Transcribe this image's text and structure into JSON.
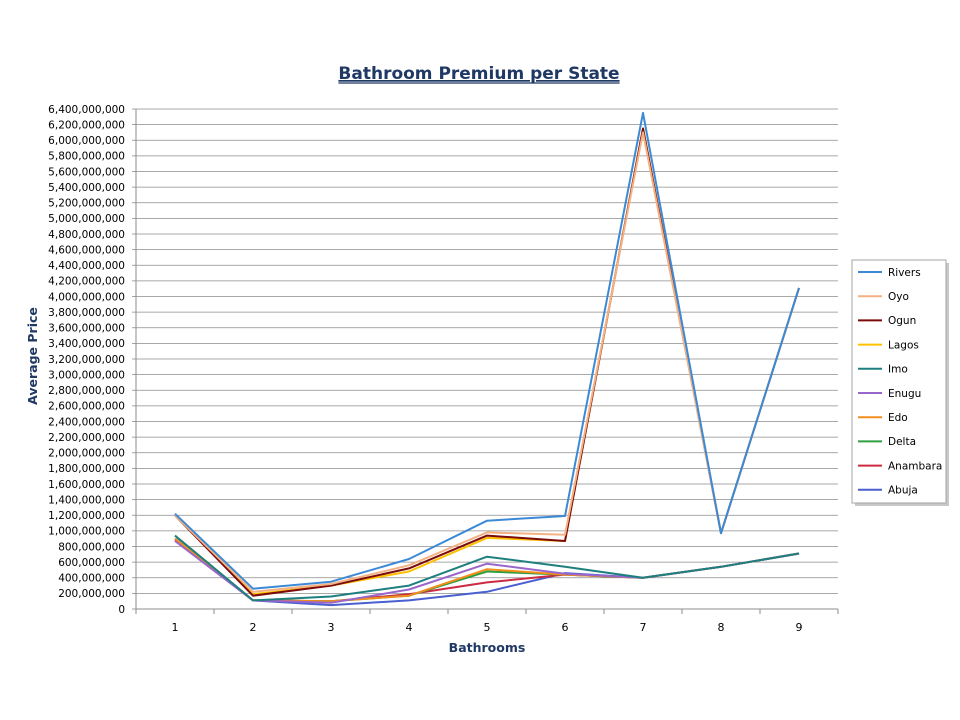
{
  "chart_data": {
    "type": "line",
    "title": "Bathroom Premium per State",
    "xlabel": "Bathrooms",
    "ylabel": "Average Price",
    "x": [
      1,
      2,
      3,
      4,
      5,
      6,
      7,
      8,
      9
    ],
    "ylim": [
      0,
      6400000000
    ],
    "ytick_step": 200000000,
    "grid": true,
    "legend_position": "right",
    "series": [
      {
        "name": "Rivers",
        "color": "#3c8ad6",
        "values": [
          1220000000,
          260000000,
          350000000,
          640000000,
          1130000000,
          1190000000,
          6350000000,
          970000000,
          4110000000
        ]
      },
      {
        "name": "Oyo",
        "color": "#f4b183",
        "values": [
          1200000000,
          220000000,
          320000000,
          560000000,
          980000000,
          950000000,
          6100000000,
          970000000,
          4110000000
        ]
      },
      {
        "name": "Ogun",
        "color": "#7b0a0a",
        "values": [
          1200000000,
          170000000,
          300000000,
          520000000,
          940000000,
          870000000,
          6150000000,
          970000000,
          4110000000
        ]
      },
      {
        "name": "Lagos",
        "color": "#ffc000",
        "values": [
          1200000000,
          190000000,
          300000000,
          480000000,
          910000000,
          870000000,
          6150000000,
          970000000,
          4110000000
        ]
      },
      {
        "name": "Imo",
        "color": "#1f7f7f",
        "values": [
          940000000,
          110000000,
          160000000,
          300000000,
          670000000,
          540000000,
          400000000,
          540000000,
          710000000
        ]
      },
      {
        "name": "Enugu",
        "color": "#9966cc",
        "values": [
          870000000,
          110000000,
          80000000,
          250000000,
          580000000,
          450000000,
          400000000,
          540000000,
          710000000
        ]
      },
      {
        "name": "Edo",
        "color": "#f28e1c",
        "values": [
          900000000,
          110000000,
          100000000,
          170000000,
          510000000,
          440000000,
          400000000,
          540000000,
          710000000
        ]
      },
      {
        "name": "Delta",
        "color": "#2e9e3e",
        "values": [
          940000000,
          110000000,
          100000000,
          170000000,
          480000000,
          440000000,
          400000000,
          540000000,
          710000000
        ]
      },
      {
        "name": "Anambara",
        "color": "#cc2a41",
        "values": [
          880000000,
          110000000,
          100000000,
          190000000,
          340000000,
          440000000,
          400000000,
          540000000,
          710000000
        ]
      },
      {
        "name": "Abuja",
        "color": "#4a5fd0",
        "values": [
          900000000,
          110000000,
          50000000,
          110000000,
          220000000,
          460000000,
          400000000,
          540000000,
          710000000
        ]
      }
    ]
  }
}
